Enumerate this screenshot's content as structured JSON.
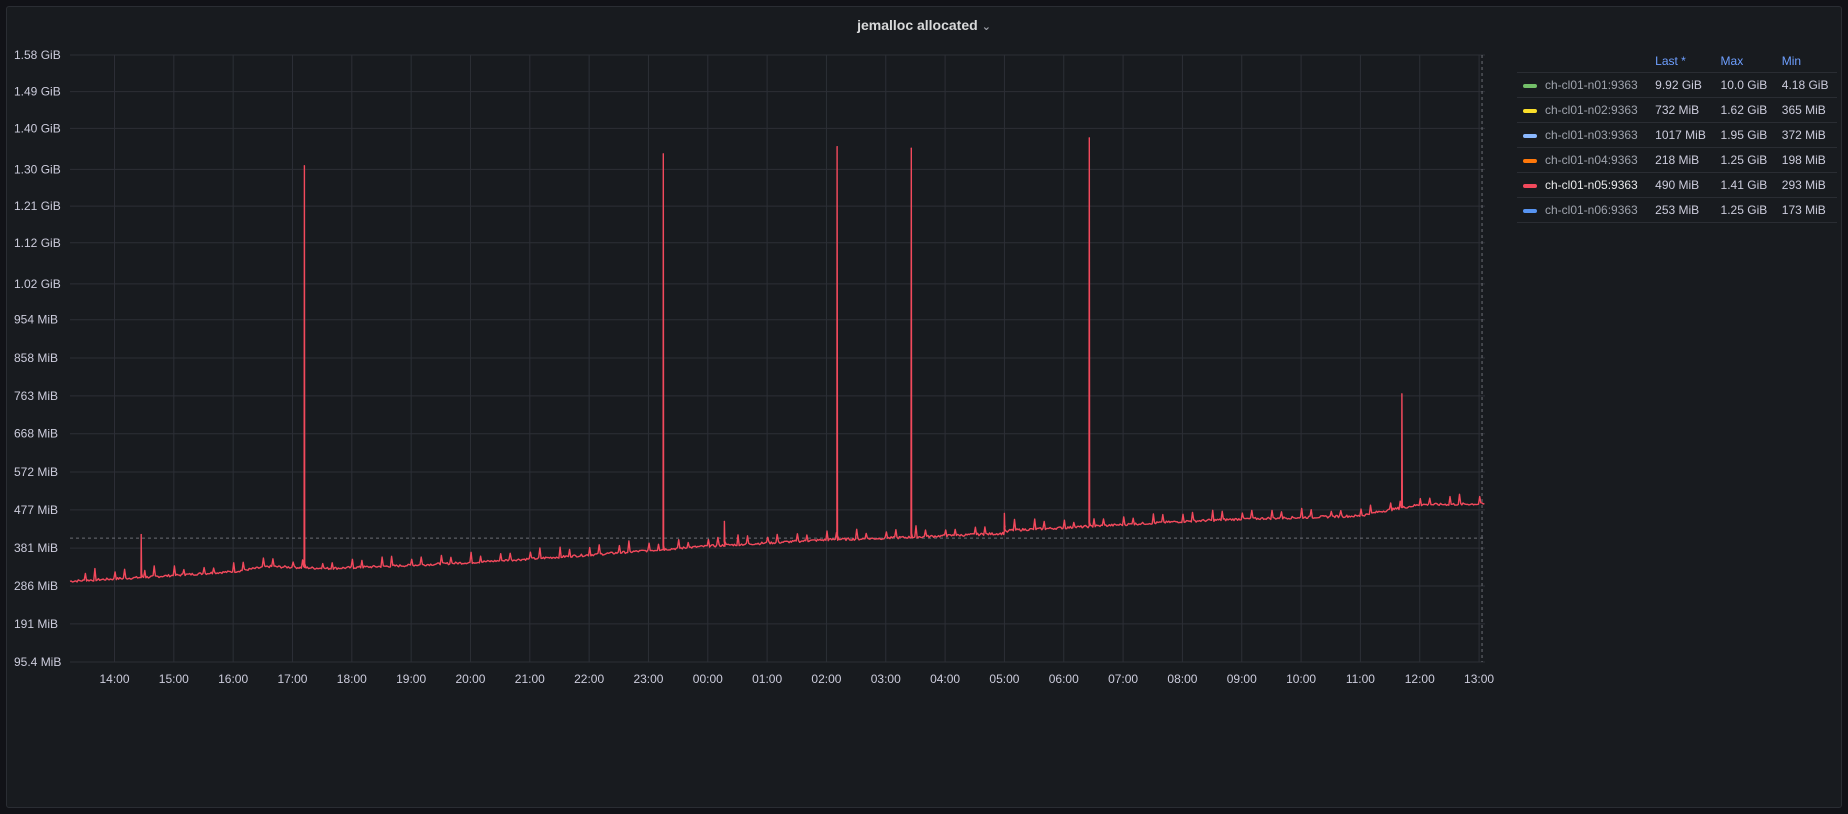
{
  "panel": {
    "title": "jemalloc allocated",
    "menu_icon": "chevron-down-icon"
  },
  "legend": {
    "headers": [
      "Last *",
      "Max",
      "Min"
    ],
    "rows": [
      {
        "name": "ch-cl01-n01:9363",
        "color": "#73bf69",
        "last": "9.92 GiB",
        "max": "10.0 GiB",
        "min": "4.18 GiB"
      },
      {
        "name": "ch-cl01-n02:9363",
        "color": "#fade2a",
        "last": "732 MiB",
        "max": "1.62 GiB",
        "min": "365 MiB"
      },
      {
        "name": "ch-cl01-n03:9363",
        "color": "#8ab8ff",
        "last": "1017 MiB",
        "max": "1.95 GiB",
        "min": "372 MiB"
      },
      {
        "name": "ch-cl01-n04:9363",
        "color": "#ff780a",
        "last": "218 MiB",
        "max": "1.25 GiB",
        "min": "198 MiB"
      },
      {
        "name": "ch-cl01-n05:9363",
        "color": "#f2495c",
        "last": "490 MiB",
        "max": "1.41 GiB",
        "min": "293 MiB"
      },
      {
        "name": "ch-cl01-n06:9363",
        "color": "#5794f2",
        "last": "253 MiB",
        "max": "1.25 GiB",
        "min": "173 MiB"
      }
    ]
  },
  "chart_data": {
    "type": "line",
    "title": "jemalloc allocated",
    "y_unit": "MiB",
    "ylim": [
      95.4,
      1618
    ],
    "y_ticks": [
      {
        "label": "1.58 GiB",
        "value": 1618
      },
      {
        "label": "1.49 GiB",
        "value": 1526
      },
      {
        "label": "1.40 GiB",
        "value": 1434
      },
      {
        "label": "1.30 GiB",
        "value": 1331
      },
      {
        "label": "1.21 GiB",
        "value": 1239
      },
      {
        "label": "1.12 GiB",
        "value": 1147
      },
      {
        "label": "1.02 GiB",
        "value": 1044
      },
      {
        "label": "954 MiB",
        "value": 954
      },
      {
        "label": "858 MiB",
        "value": 858
      },
      {
        "label": "763 MiB",
        "value": 763
      },
      {
        "label": "668 MiB",
        "value": 668
      },
      {
        "label": "572 MiB",
        "value": 572
      },
      {
        "label": "477 MiB",
        "value": 477
      },
      {
        "label": "381 MiB",
        "value": 381
      },
      {
        "label": "286 MiB",
        "value": 286
      },
      {
        "label": "191 MiB",
        "value": 191
      },
      {
        "label": "95.4 MiB",
        "value": 95.4
      }
    ],
    "xlim": [
      13.25,
      13.1
    ],
    "x_ticks": [
      {
        "label": "14:00",
        "hour": 14
      },
      {
        "label": "15:00",
        "hour": 15
      },
      {
        "label": "16:00",
        "hour": 16
      },
      {
        "label": "17:00",
        "hour": 17
      },
      {
        "label": "18:00",
        "hour": 18
      },
      {
        "label": "19:00",
        "hour": 19
      },
      {
        "label": "20:00",
        "hour": 20
      },
      {
        "label": "21:00",
        "hour": 21
      },
      {
        "label": "22:00",
        "hour": 22
      },
      {
        "label": "23:00",
        "hour": 23
      },
      {
        "label": "00:00",
        "hour": 24
      },
      {
        "label": "01:00",
        "hour": 25
      },
      {
        "label": "02:00",
        "hour": 26
      },
      {
        "label": "03:00",
        "hour": 27
      },
      {
        "label": "04:00",
        "hour": 28
      },
      {
        "label": "05:00",
        "hour": 29
      },
      {
        "label": "06:00",
        "hour": 30
      },
      {
        "label": "07:00",
        "hour": 31
      },
      {
        "label": "08:00",
        "hour": 32
      },
      {
        "label": "09:00",
        "hour": 33
      },
      {
        "label": "10:00",
        "hour": 34
      },
      {
        "label": "11:00",
        "hour": 35
      },
      {
        "label": "12:00",
        "hour": 36
      },
      {
        "label": "13:00",
        "hour": 37
      }
    ],
    "grid": true,
    "legend_position": "right",
    "threshold_line": 406,
    "series": [
      {
        "name": "ch-cl01-n05:9363",
        "color": "#f2495c",
        "baseline": [
          [
            13.25,
            298
          ],
          [
            14.5,
            308
          ],
          [
            16.0,
            322
          ],
          [
            16.6,
            335
          ],
          [
            17.6,
            330
          ],
          [
            19.0,
            338
          ],
          [
            20.0,
            345
          ],
          [
            21.0,
            354
          ],
          [
            22.0,
            364
          ],
          [
            23.0,
            375
          ],
          [
            24.0,
            386
          ],
          [
            25.0,
            394
          ],
          [
            26.0,
            402
          ],
          [
            27.0,
            406
          ],
          [
            28.0,
            412
          ],
          [
            29.0,
            418
          ],
          [
            29.1,
            426
          ],
          [
            30.0,
            432
          ],
          [
            31.0,
            440
          ],
          [
            32.0,
            448
          ],
          [
            33.0,
            454
          ],
          [
            34.0,
            458
          ],
          [
            35.0,
            462
          ],
          [
            35.3,
            472
          ],
          [
            36.0,
            490
          ],
          [
            37.1,
            492
          ]
        ],
        "spikes": [
          {
            "hour": 14.45,
            "value": 415
          },
          {
            "hour": 17.2,
            "value": 1340
          },
          {
            "hour": 23.25,
            "value": 1370
          },
          {
            "hour": 24.28,
            "value": 448
          },
          {
            "hour": 26.18,
            "value": 1388
          },
          {
            "hour": 27.43,
            "value": 1384
          },
          {
            "hour": 29.0,
            "value": 468
          },
          {
            "hour": 30.43,
            "value": 1410
          },
          {
            "hour": 35.7,
            "value": 768
          }
        ]
      }
    ]
  }
}
